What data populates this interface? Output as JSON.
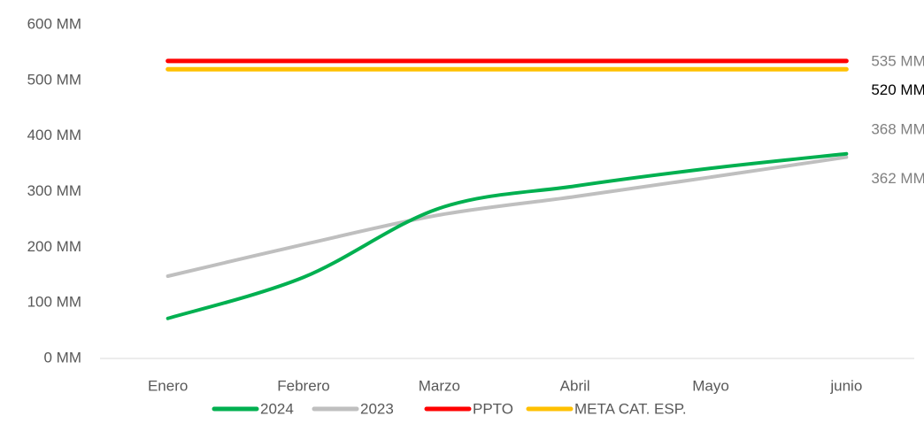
{
  "chart_data": {
    "type": "line",
    "categories": [
      "Enero",
      "Febrero",
      "Marzo",
      "Abril",
      "Mayo",
      "junio"
    ],
    "series": [
      {
        "name": "2024",
        "color": "#00b050",
        "label_color": "#808080",
        "values": [
          72,
          146,
          270,
          310,
          342,
          368
        ],
        "value_labels": [
          null,
          null,
          null,
          null,
          null,
          "368 MM"
        ]
      },
      {
        "name": "2023",
        "color": "#bfbfbf",
        "label_color": "#808080",
        "values": [
          148,
          205,
          258,
          291,
          326,
          362
        ],
        "value_labels": [
          null,
          null,
          null,
          null,
          null,
          "362 MM"
        ]
      },
      {
        "name": "PPTO",
        "color": "#ff0000",
        "label_color": "#808080",
        "values": [
          535,
          535,
          535,
          535,
          535,
          535
        ],
        "value_labels": [
          null,
          null,
          null,
          null,
          null,
          "535 MM"
        ]
      },
      {
        "name": "META CAT. ESP.",
        "color": "#ffc000",
        "label_color": "#000000",
        "values": [
          520,
          520,
          520,
          520,
          520,
          520
        ],
        "value_labels": [
          null,
          null,
          null,
          null,
          null,
          "520 MM"
        ]
      }
    ],
    "ylim": [
      0,
      600
    ],
    "yticks": [
      {
        "value": 0,
        "label": "0 MM"
      },
      {
        "value": 100,
        "label": "100 MM"
      },
      {
        "value": 200,
        "label": "200 MM"
      },
      {
        "value": 300,
        "label": "300 MM"
      },
      {
        "value": 400,
        "label": "400 MM"
      },
      {
        "value": 500,
        "label": "500 MM"
      },
      {
        "value": 600,
        "label": "600 MM"
      }
    ],
    "grid": false,
    "legend": "bottom",
    "smooth": true
  }
}
